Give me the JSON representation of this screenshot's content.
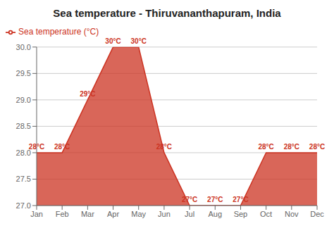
{
  "chart_data": {
    "type": "area",
    "title": "Sea temperature - Thiruvananthapuram, India",
    "categories": [
      "Jan",
      "Feb",
      "Mar",
      "Apr",
      "May",
      "Jun",
      "Jul",
      "Aug",
      "Sep",
      "Oct",
      "Nov",
      "Dec"
    ],
    "series": [
      {
        "name": "Sea temperature (°C)",
        "color": "#CC3322",
        "values": [
          28,
          28,
          29,
          30,
          30,
          28,
          27,
          27,
          27,
          28,
          28,
          28
        ],
        "value_labels": [
          "28°C",
          "28°C",
          "29°C",
          "30°C",
          "30°C",
          "28°C",
          "27°C",
          "27°C",
          "27°C",
          "28°C",
          "28°C",
          "28°C"
        ]
      }
    ],
    "ylim": [
      27.0,
      30.0
    ],
    "yticks": [
      {
        "value": 27.0,
        "label": "27.0"
      },
      {
        "value": 27.5,
        "label": "27.5"
      },
      {
        "value": 28.0,
        "label": "28.0"
      },
      {
        "value": 28.5,
        "label": "28.5"
      },
      {
        "value": 29.0,
        "label": "29.0"
      },
      {
        "value": 29.5,
        "label": "29.5"
      },
      {
        "value": 30.0,
        "label": "30.0"
      }
    ],
    "grid": true,
    "legend": "upper left",
    "data_labels": true
  }
}
